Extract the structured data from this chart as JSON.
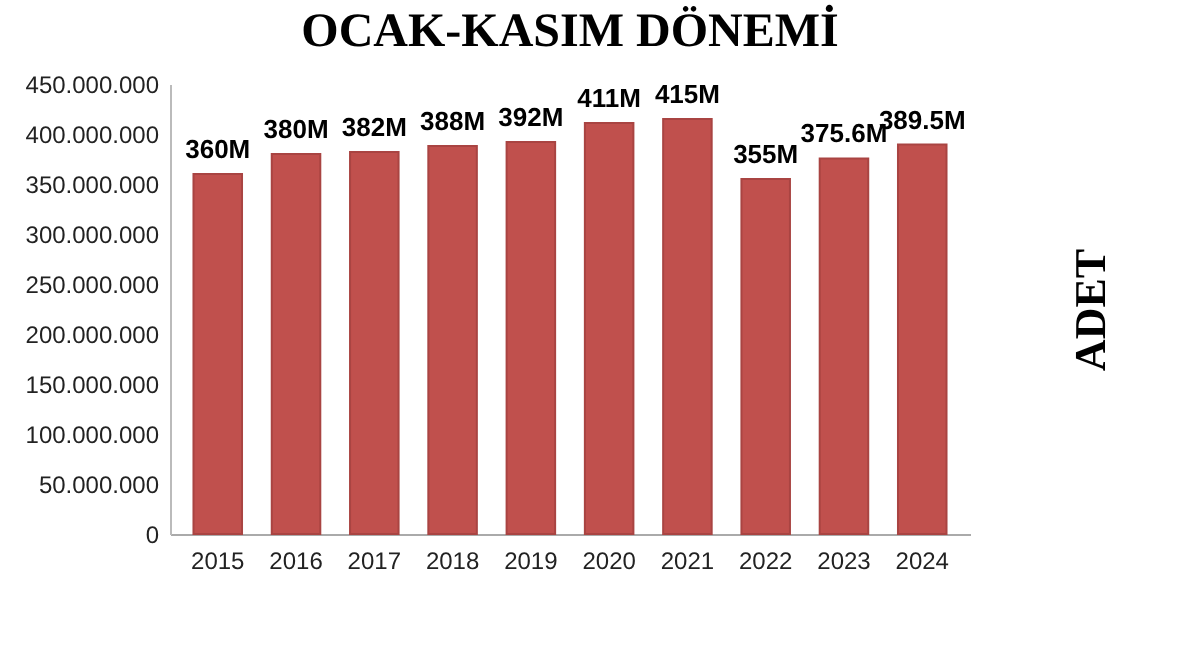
{
  "chart_data": {
    "type": "bar",
    "title": "OCAK-KASIM DÖNEMİ",
    "ylabel": "ADET",
    "categories": [
      "2015",
      "2016",
      "2017",
      "2018",
      "2019",
      "2020",
      "2021",
      "2022",
      "2023",
      "2024"
    ],
    "values": [
      360000000,
      380000000,
      382000000,
      388000000,
      392000000,
      411000000,
      415000000,
      355000000,
      375600000,
      389500000
    ],
    "value_labels": [
      "360M",
      "380M",
      "382M",
      "388M",
      "392M",
      "411M",
      "415M",
      "355M",
      "375.6M",
      "389.5M"
    ],
    "color": "#c0504d",
    "ylim": [
      0,
      450000000
    ],
    "yticks": [
      {
        "value": 0,
        "label": "0"
      },
      {
        "value": 50000000,
        "label": "50.000.000"
      },
      {
        "value": 100000000,
        "label": "100.000.000"
      },
      {
        "value": 150000000,
        "label": "150.000.000"
      },
      {
        "value": 200000000,
        "label": "200.000.000"
      },
      {
        "value": 250000000,
        "label": "250.000.000"
      },
      {
        "value": 300000000,
        "label": "300.000.000"
      },
      {
        "value": 350000000,
        "label": "350.000.000"
      },
      {
        "value": 400000000,
        "label": "400.000.000"
      },
      {
        "value": 450000000,
        "label": "450.000.000"
      }
    ],
    "grid": false
  }
}
